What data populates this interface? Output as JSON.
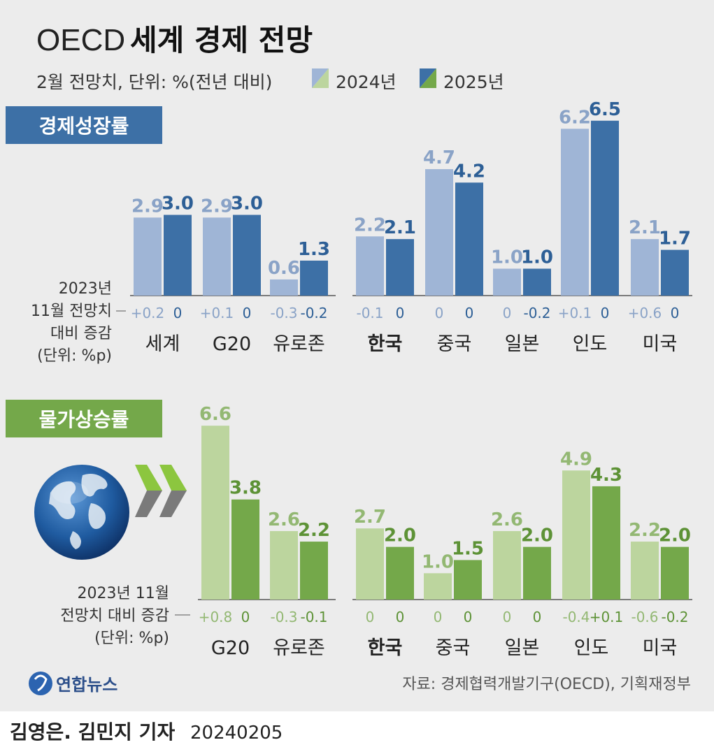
{
  "header": {
    "title_prefix": "OECD",
    "title_main": "세계 경제 전망",
    "subtitle": "2월 전망치, 단위: %(전년 대비)",
    "legend_2024": "2024년",
    "legend_2025": "2025년"
  },
  "colors": {
    "growth_2024": "#9fb5d6",
    "growth_2025": "#3d70a6",
    "inflation_2024": "#bcd59e",
    "inflation_2025": "#74a84a",
    "growth_label_2024": "#8aa3c7",
    "growth_label_2025": "#2d5f96",
    "inflation_label_2024": "#93b873",
    "inflation_label_2025": "#5d9236",
    "growth_banner": "#3d70a6",
    "inflation_banner": "#74a84a"
  },
  "sections": {
    "growth_label": "경제성장률",
    "inflation_label": "물가상승률"
  },
  "change_notes": {
    "growth": [
      "2023년",
      "11월 전망치",
      "대비 증감",
      "(단위: %p)"
    ],
    "inflation": [
      "2023년 11월",
      "전망치 대비 증감",
      "(단위: %p)"
    ]
  },
  "footer": {
    "logo_text": "연합뉴스",
    "source": "자료: 경제협력개발기구(OECD), 기획재정부",
    "byline": "김영은. 김민지 기자",
    "date": "20240205"
  },
  "chart_data": [
    {
      "type": "bar",
      "title": "경제성장률",
      "categories": [
        "세계",
        "G20",
        "유로존",
        "한국",
        "중국",
        "일본",
        "인도",
        "미국"
      ],
      "series": [
        {
          "name": "2024년",
          "values": [
            2.9,
            2.9,
            0.6,
            2.2,
            4.7,
            1.0,
            6.2,
            2.1
          ],
          "change": [
            "+0.2",
            "+0.1",
            "-0.3",
            "-0.1",
            "0",
            "0",
            "+0.1",
            "+0.6"
          ]
        },
        {
          "name": "2025년",
          "values": [
            3.0,
            3.0,
            1.3,
            2.1,
            4.2,
            1.0,
            6.5,
            1.7
          ],
          "change": [
            "0",
            "0",
            "-0.2",
            "0",
            "0",
            "-0.2",
            "0",
            "0"
          ]
        }
      ],
      "labels_2024": [
        "2.9",
        "2.9",
        "0.6",
        "2.2",
        "4.7",
        "1.0",
        "6.2",
        "2.1"
      ],
      "labels_2025": [
        "3.0",
        "3.0",
        "1.3",
        "2.1",
        "4.2",
        "1.0",
        "6.5",
        "1.7"
      ]
    },
    {
      "type": "bar",
      "title": "물가상승률",
      "categories": [
        "G20",
        "유로존",
        "한국",
        "중국",
        "일본",
        "인도",
        "미국"
      ],
      "series": [
        {
          "name": "2024년",
          "values": [
            6.6,
            2.6,
            2.7,
            1.0,
            2.6,
            4.9,
            2.2
          ],
          "change": [
            "+0.8",
            "-0.3",
            "0",
            "0",
            "0",
            "-0.4",
            "-0.6"
          ]
        },
        {
          "name": "2025년",
          "values": [
            3.8,
            2.2,
            2.0,
            1.5,
            2.0,
            4.3,
            2.0
          ],
          "change": [
            "0",
            "-0.1",
            "0",
            "0",
            "0",
            "+0.1",
            "-0.2"
          ]
        }
      ],
      "labels_2024": [
        "6.6",
        "2.6",
        "2.7",
        "1.0",
        "2.6",
        "4.9",
        "2.2"
      ],
      "labels_2025": [
        "3.8",
        "2.2",
        "2.0",
        "1.5",
        "2.0",
        "4.3",
        "2.0"
      ]
    }
  ]
}
